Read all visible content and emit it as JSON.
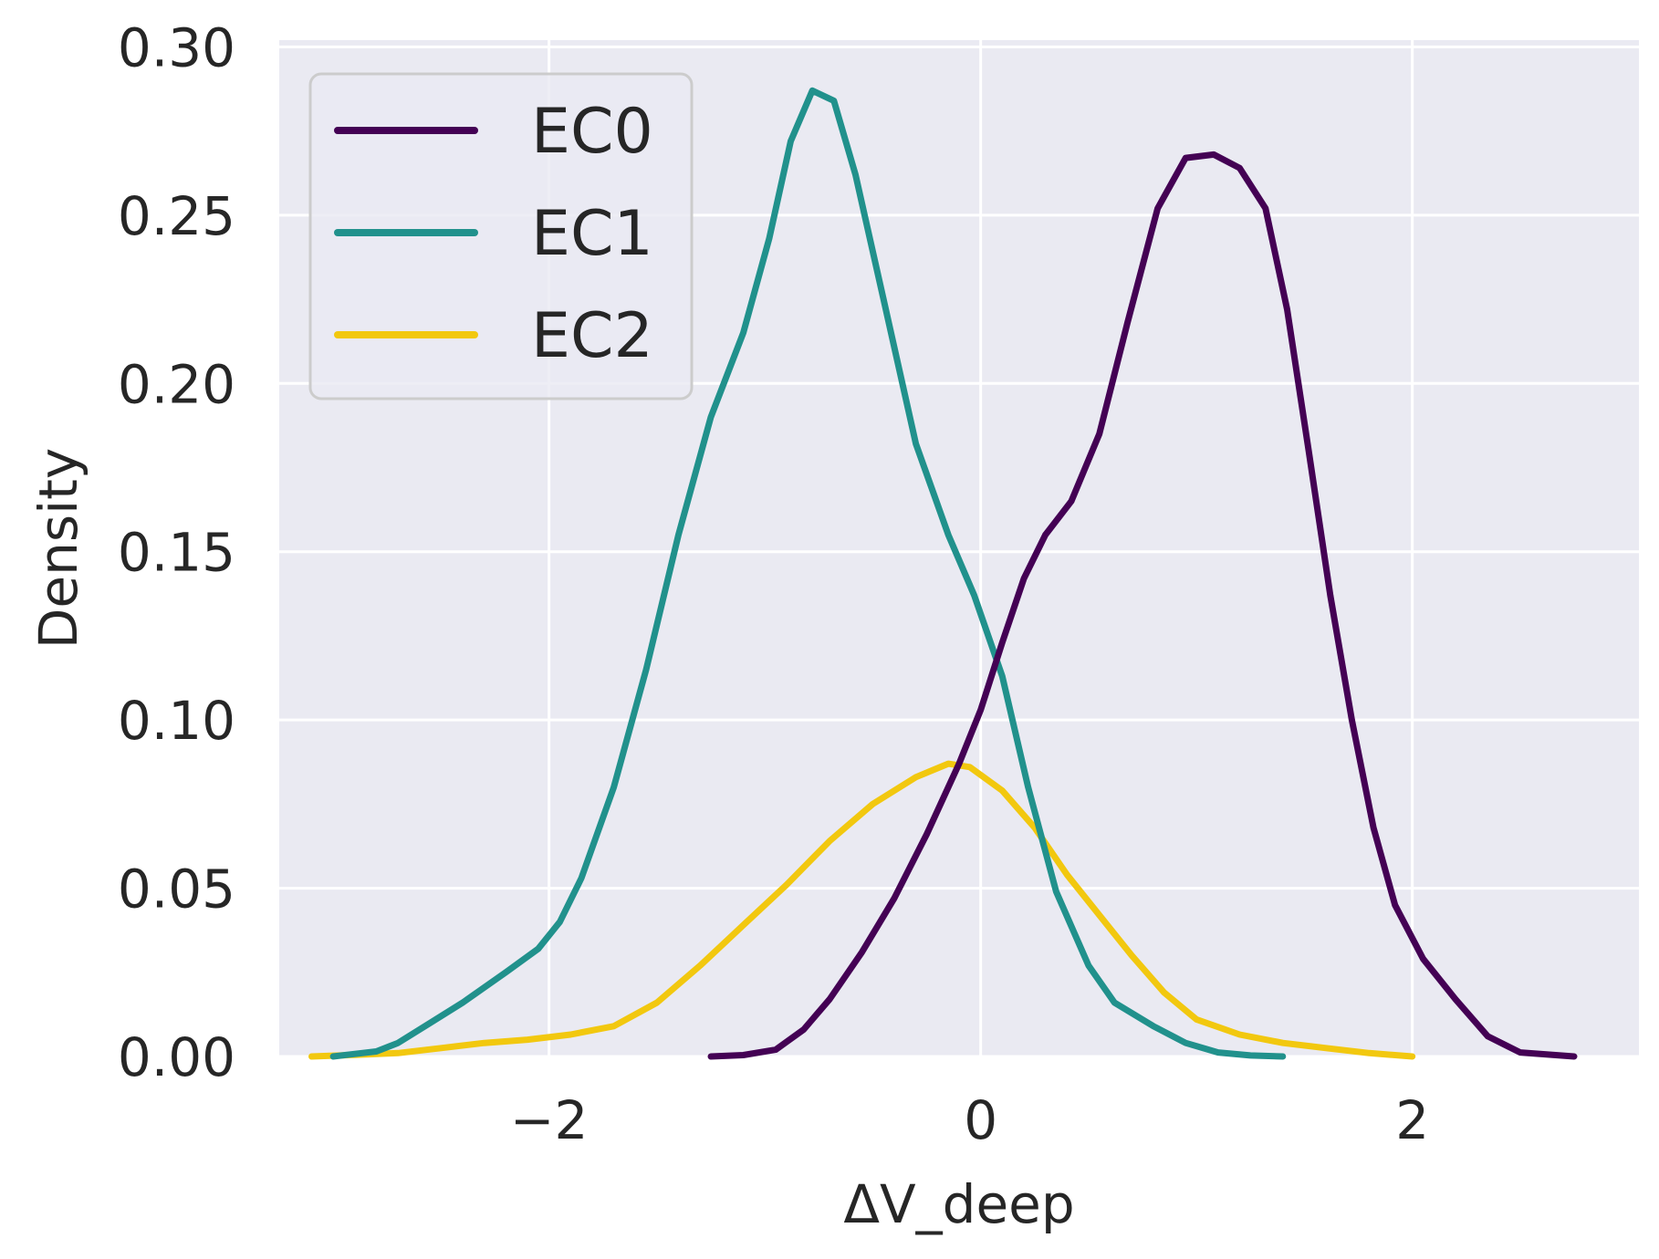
{
  "chart_data": {
    "type": "line",
    "title": "",
    "xlabel": "ΔV_deep",
    "ylabel": "Density",
    "xlim": [
      -3.25,
      3.05
    ],
    "ylim": [
      0,
      0.302
    ],
    "xticks": [
      -2,
      0,
      2
    ],
    "xtick_labels": [
      "−2",
      "0",
      "2"
    ],
    "yticks": [
      0,
      0.05,
      0.1,
      0.15,
      0.2,
      0.25,
      0.3
    ],
    "ytick_labels": [
      "0.00",
      "0.05",
      "0.10",
      "0.15",
      "0.20",
      "0.25",
      "0.30"
    ],
    "grid": true,
    "legend_position": "top-left",
    "series": [
      {
        "name": "EC2",
        "color": "#f2c80f",
        "points": [
          [
            -3.1,
            0.0
          ],
          [
            -2.9,
            0.0005
          ],
          [
            -2.7,
            0.001
          ],
          [
            -2.5,
            0.0025
          ],
          [
            -2.3,
            0.004
          ],
          [
            -2.1,
            0.005
          ],
          [
            -1.9,
            0.0065
          ],
          [
            -1.7,
            0.009
          ],
          [
            -1.5,
            0.016
          ],
          [
            -1.3,
            0.027
          ],
          [
            -1.1,
            0.039
          ],
          [
            -0.9,
            0.051
          ],
          [
            -0.7,
            0.064
          ],
          [
            -0.5,
            0.075
          ],
          [
            -0.3,
            0.083
          ],
          [
            -0.15,
            0.087
          ],
          [
            -0.05,
            0.086
          ],
          [
            0.1,
            0.079
          ],
          [
            0.25,
            0.068
          ],
          [
            0.4,
            0.054
          ],
          [
            0.55,
            0.042
          ],
          [
            0.7,
            0.03
          ],
          [
            0.85,
            0.019
          ],
          [
            1.0,
            0.011
          ],
          [
            1.2,
            0.0065
          ],
          [
            1.4,
            0.004
          ],
          [
            1.6,
            0.0025
          ],
          [
            1.8,
            0.001
          ],
          [
            2.0,
            0.0
          ]
        ]
      },
      {
        "name": "EC1",
        "color": "#21918c",
        "points": [
          [
            -3.0,
            0.0
          ],
          [
            -2.8,
            0.0015
          ],
          [
            -2.7,
            0.004
          ],
          [
            -2.55,
            0.01
          ],
          [
            -2.4,
            0.016
          ],
          [
            -2.2,
            0.025
          ],
          [
            -2.05,
            0.032
          ],
          [
            -1.95,
            0.04
          ],
          [
            -1.85,
            0.053
          ],
          [
            -1.7,
            0.08
          ],
          [
            -1.55,
            0.115
          ],
          [
            -1.4,
            0.155
          ],
          [
            -1.25,
            0.19
          ],
          [
            -1.1,
            0.215
          ],
          [
            -0.98,
            0.243
          ],
          [
            -0.88,
            0.272
          ],
          [
            -0.78,
            0.287
          ],
          [
            -0.68,
            0.284
          ],
          [
            -0.58,
            0.262
          ],
          [
            -0.45,
            0.225
          ],
          [
            -0.3,
            0.182
          ],
          [
            -0.15,
            0.155
          ],
          [
            -0.03,
            0.137
          ],
          [
            0.1,
            0.113
          ],
          [
            0.22,
            0.08
          ],
          [
            0.35,
            0.049
          ],
          [
            0.5,
            0.027
          ],
          [
            0.62,
            0.016
          ],
          [
            0.8,
            0.009
          ],
          [
            0.95,
            0.004
          ],
          [
            1.1,
            0.0012
          ],
          [
            1.25,
            0.0003
          ],
          [
            1.4,
            0.0
          ]
        ]
      },
      {
        "name": "EC0",
        "color": "#440154",
        "points": [
          [
            -1.25,
            0.0
          ],
          [
            -1.1,
            0.0004
          ],
          [
            -0.95,
            0.002
          ],
          [
            -0.82,
            0.008
          ],
          [
            -0.7,
            0.017
          ],
          [
            -0.55,
            0.031
          ],
          [
            -0.4,
            0.047
          ],
          [
            -0.25,
            0.066
          ],
          [
            -0.1,
            0.087
          ],
          [
            0.0,
            0.103
          ],
          [
            0.1,
            0.123
          ],
          [
            0.2,
            0.142
          ],
          [
            0.3,
            0.155
          ],
          [
            0.42,
            0.165
          ],
          [
            0.55,
            0.185
          ],
          [
            0.68,
            0.218
          ],
          [
            0.82,
            0.252
          ],
          [
            0.95,
            0.267
          ],
          [
            1.08,
            0.268
          ],
          [
            1.2,
            0.264
          ],
          [
            1.32,
            0.252
          ],
          [
            1.42,
            0.222
          ],
          [
            1.52,
            0.18
          ],
          [
            1.62,
            0.137
          ],
          [
            1.72,
            0.1
          ],
          [
            1.82,
            0.068
          ],
          [
            1.92,
            0.045
          ],
          [
            2.05,
            0.029
          ],
          [
            2.2,
            0.017
          ],
          [
            2.35,
            0.006
          ],
          [
            2.5,
            0.0012
          ],
          [
            2.75,
            0.0
          ]
        ]
      }
    ]
  }
}
